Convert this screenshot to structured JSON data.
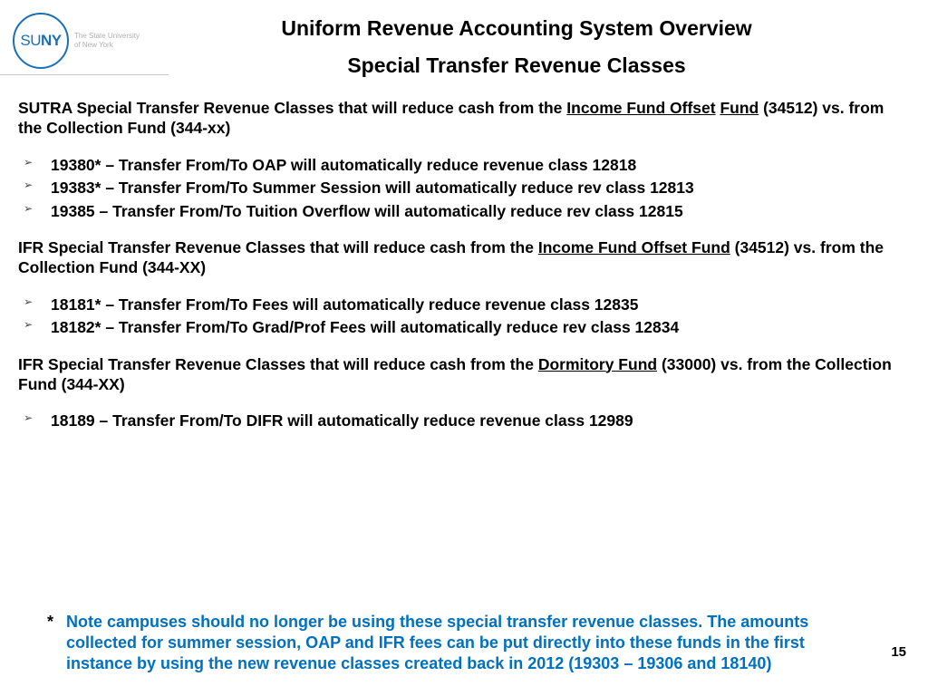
{
  "logo": {
    "su": "SU",
    "ny": "NY",
    "sub1": "The State University",
    "sub2": "of New York"
  },
  "title1": "Uniform Revenue Accounting System Overview",
  "title2": "Special Transfer Revenue Classes",
  "section1": {
    "intro_prefix": "SUTRA Special Transfer Revenue Classes that will reduce cash from the ",
    "intro_u1": "Income Fund Offset",
    "intro_sep": " ",
    "intro_u2": "Fund",
    "intro_suffix": " (34512) vs. from the Collection Fund (344-xx)",
    "items": [
      "19380* – Transfer From/To OAP will automatically reduce revenue class 12818",
      "19383* – Transfer From/To Summer Session will automatically reduce rev class 12813",
      "19385 – Transfer From/To Tuition Overflow will automatically reduce rev class 12815"
    ]
  },
  "section2": {
    "intro_prefix": "IFR Special Transfer Revenue Classes that will reduce cash from the ",
    "intro_u1": "Income Fund Offset Fund",
    "intro_suffix": " (34512) vs. from the Collection Fund (344-XX)",
    "items": [
      "18181* – Transfer From/To Fees will automatically reduce revenue class 12835",
      "18182* – Transfer From/To Grad/Prof Fees will automatically reduce rev class 12834"
    ]
  },
  "section3": {
    "intro_prefix": "IFR Special Transfer Revenue Classes that will reduce cash from the ",
    "intro_u1": "Dormitory Fund",
    "intro_suffix": " (33000) vs. from the Collection Fund (344-XX)",
    "items": [
      "18189 – Transfer From/To DIFR will automatically reduce revenue class 12989"
    ]
  },
  "footnote": {
    "star": "*",
    "text": "Note campuses should no longer be using these special transfer revenue classes.  The amounts collected for summer session, OAP and IFR fees can be put directly into these funds in the first instance by using the new revenue classes created back in 2012 (19303 – 19306 and 18140)"
  },
  "page_number": "15",
  "colors": {
    "accent_blue": "#0070c0",
    "logo_blue": "#1a6fb5"
  }
}
